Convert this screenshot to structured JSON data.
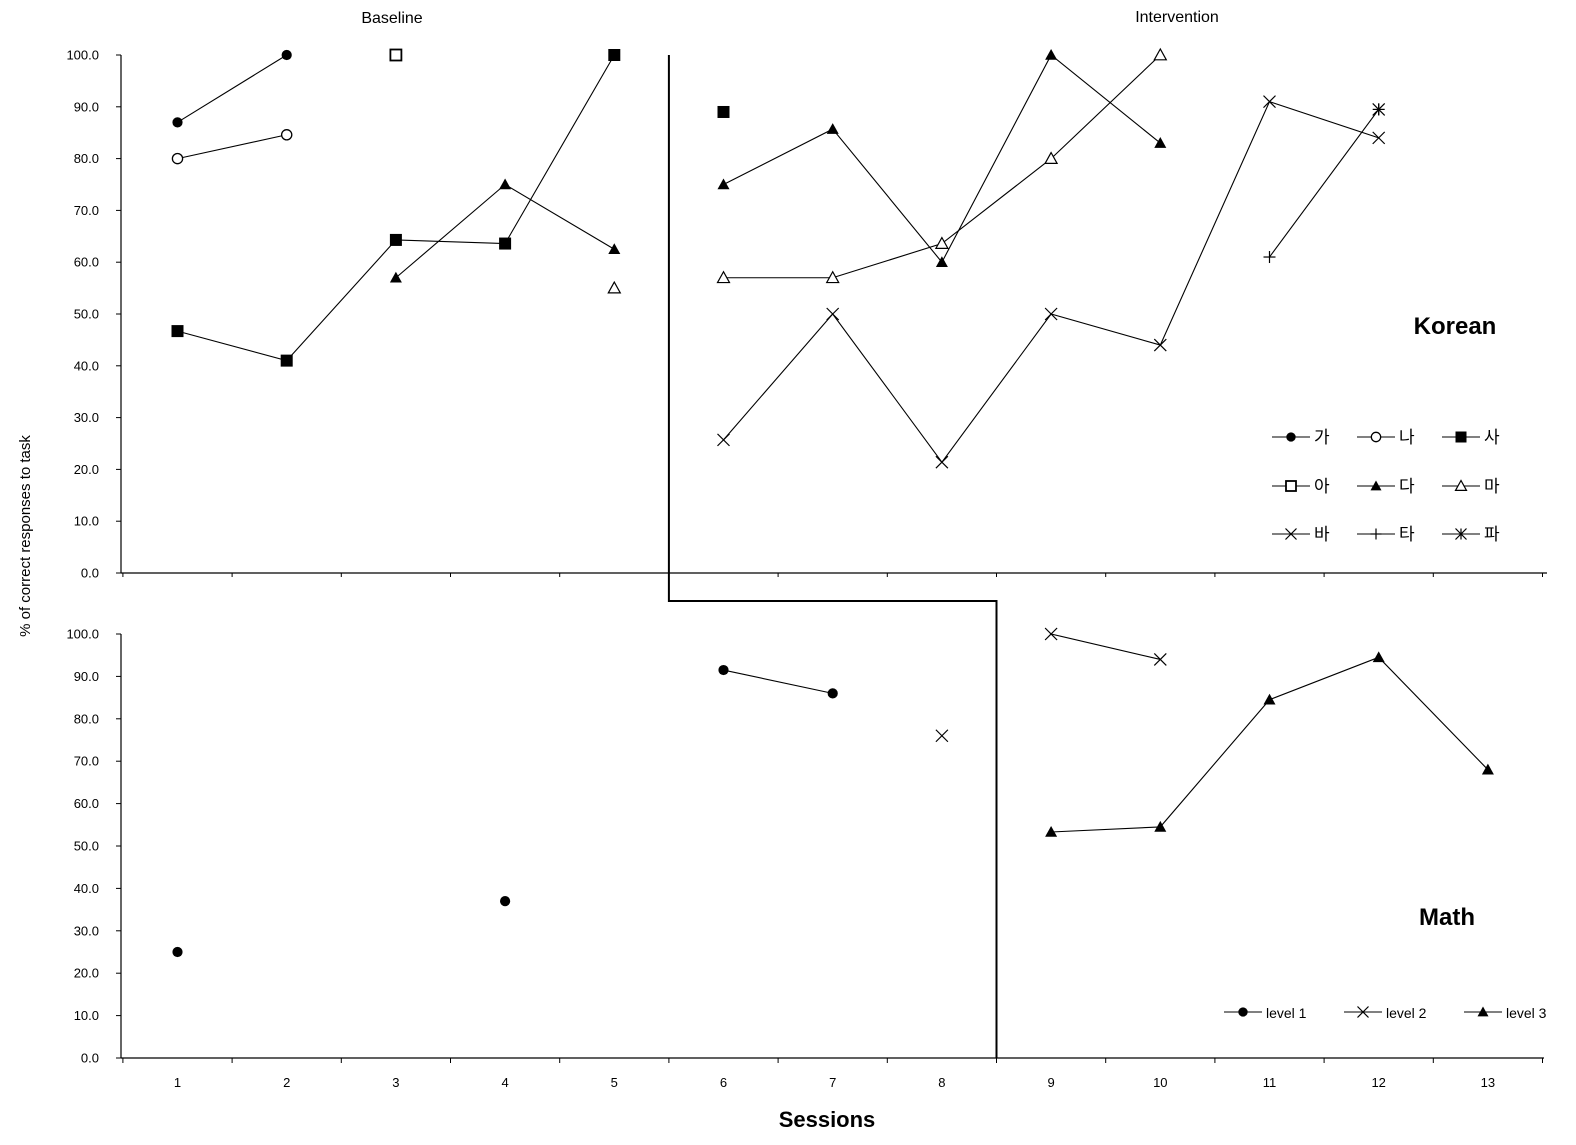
{
  "figure": {
    "phase_labels": [
      "Baseline",
      "Intervention"
    ],
    "ylabel": "% of correct responses to task",
    "xlabel": "Sessions"
  },
  "chart_data": [
    {
      "type": "line",
      "panel": "Korean",
      "x": [
        1,
        2,
        3,
        4,
        5,
        6,
        7,
        8,
        9,
        10,
        11,
        12
      ],
      "ylim": [
        0,
        100
      ],
      "yticks": [
        "0.0",
        "10.0",
        "20.0",
        "30.0",
        "40.0",
        "50.0",
        "60.0",
        "70.0",
        "80.0",
        "90.0",
        "100.0"
      ],
      "phase_change_after_session": 5,
      "legend_position": "bottom-right",
      "series": [
        {
          "name": "가",
          "marker": "filled-circle",
          "values": [
            87,
            100,
            null,
            null,
            null,
            null,
            null,
            null,
            null,
            null,
            null,
            null
          ]
        },
        {
          "name": "나",
          "marker": "open-circle",
          "values": [
            80,
            84.6,
            null,
            null,
            null,
            null,
            null,
            null,
            null,
            null,
            null,
            null
          ]
        },
        {
          "name": "사",
          "marker": "filled-square",
          "values": [
            46.7,
            41,
            64.3,
            63.6,
            100,
            89,
            null,
            null,
            null,
            null,
            null,
            null
          ]
        },
        {
          "name": "아",
          "marker": "open-square",
          "values": [
            null,
            null,
            100,
            null,
            null,
            null,
            null,
            null,
            null,
            null,
            null,
            null
          ]
        },
        {
          "name": "다",
          "marker": "filled-triangle",
          "values": [
            null,
            null,
            57,
            75,
            62.5,
            75,
            85.7,
            60,
            100,
            83,
            null,
            null
          ]
        },
        {
          "name": "마",
          "marker": "open-triangle",
          "values": [
            null,
            null,
            null,
            null,
            55,
            57,
            57,
            63.6,
            80,
            100,
            null,
            null
          ]
        },
        {
          "name": "바",
          "marker": "x",
          "values": [
            null,
            null,
            null,
            null,
            null,
            25.7,
            50,
            21.4,
            50,
            44,
            91,
            84
          ]
        },
        {
          "name": "타",
          "marker": "plus",
          "values": [
            null,
            null,
            null,
            null,
            null,
            null,
            null,
            null,
            null,
            null,
            61,
            89.5
          ]
        },
        {
          "name": "파",
          "marker": "asterisk",
          "values": [
            null,
            null,
            null,
            null,
            null,
            null,
            null,
            null,
            null,
            null,
            null,
            89.5
          ]
        }
      ]
    },
    {
      "type": "line",
      "panel": "Math",
      "x": [
        1,
        2,
        3,
        4,
        5,
        6,
        7,
        8,
        9,
        10,
        11,
        12,
        13
      ],
      "xticks": [
        "1",
        "2",
        "3",
        "4",
        "5",
        "6",
        "7",
        "8",
        "9",
        "10",
        "11",
        "12",
        "13"
      ],
      "ylim": [
        0,
        100
      ],
      "yticks": [
        "0.0",
        "10.0",
        "20.0",
        "30.0",
        "40.0",
        "50.0",
        "60.0",
        "70.0",
        "80.0",
        "90.0",
        "100.0"
      ],
      "phase_change_after_session": 8,
      "legend_position": "bottom-right",
      "series": [
        {
          "name": "level 1",
          "marker": "filled-circle",
          "values": [
            25,
            null,
            null,
            37,
            null,
            91.5,
            86,
            null,
            null,
            null,
            null,
            null,
            null
          ]
        },
        {
          "name": "level 2",
          "marker": "x",
          "values": [
            null,
            null,
            null,
            null,
            null,
            null,
            null,
            76,
            100,
            94,
            null,
            null,
            null
          ]
        },
        {
          "name": "level 3",
          "marker": "filled-triangle",
          "values": [
            null,
            null,
            null,
            null,
            null,
            null,
            null,
            null,
            53.3,
            54.5,
            84.5,
            94.5,
            68
          ]
        }
      ]
    }
  ]
}
